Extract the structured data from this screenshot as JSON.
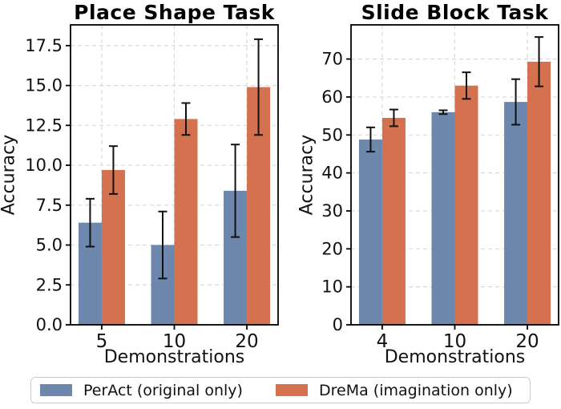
{
  "figure": {
    "background": "#ffffff"
  },
  "colors": {
    "peract_blue": "#6d87ad",
    "drema_orange": "#d4714e",
    "error_bar": "#111111",
    "grid": "#d9d9d9",
    "axis": "#000000",
    "text": "#111111",
    "legend_border": "#cccccc"
  },
  "legend": {
    "items": [
      {
        "label": "PerAct (original only)",
        "color": "#6d87ad"
      },
      {
        "label": "DreMa (imagination only)",
        "color": "#d4714e"
      }
    ]
  },
  "chart_data": [
    {
      "type": "bar",
      "title": "Place Shape Task",
      "xlabel": "Demonstrations",
      "ylabel": "Accuracy",
      "categories": [
        "5",
        "10",
        "20"
      ],
      "ylim": [
        0,
        18.8
      ],
      "yticks": [
        0,
        2.5,
        5,
        7.5,
        10,
        12.5,
        15,
        17.5
      ],
      "ytick_labels": [
        "0.0",
        "2.5",
        "5.0",
        "7.5",
        "10.0",
        "12.5",
        "15.0",
        "17.5"
      ],
      "grid": "dashed-both-axes",
      "legend_position": "figure-bottom",
      "series": [
        {
          "name": "PerAct (original only)",
          "color": "#6d87ad",
          "values": [
            6.4,
            5.0,
            8.4
          ],
          "errors": [
            1.5,
            2.1,
            2.9
          ]
        },
        {
          "name": "DreMa (imagination only)",
          "color": "#d4714e",
          "values": [
            9.7,
            12.9,
            14.9
          ],
          "errors": [
            1.5,
            1.0,
            3.0
          ]
        }
      ]
    },
    {
      "type": "bar",
      "title": "Slide Block Task",
      "xlabel": "Demonstrations",
      "ylabel": "Accuracy",
      "categories": [
        "4",
        "10",
        "20"
      ],
      "ylim": [
        0,
        79
      ],
      "yticks": [
        0,
        10,
        20,
        30,
        40,
        50,
        60,
        70
      ],
      "ytick_labels": [
        "0",
        "10",
        "20",
        "30",
        "40",
        "50",
        "60",
        "70"
      ],
      "grid": "dashed-both-axes",
      "legend_position": "figure-bottom",
      "series": [
        {
          "name": "PerAct (original only)",
          "color": "#6d87ad",
          "values": [
            48.8,
            56.0,
            58.7
          ],
          "errors": [
            3.2,
            0.5,
            6.0
          ]
        },
        {
          "name": "DreMa (imagination only)",
          "color": "#d4714e",
          "values": [
            54.5,
            63.0,
            69.3
          ],
          "errors": [
            2.2,
            3.5,
            6.5
          ]
        }
      ]
    }
  ]
}
